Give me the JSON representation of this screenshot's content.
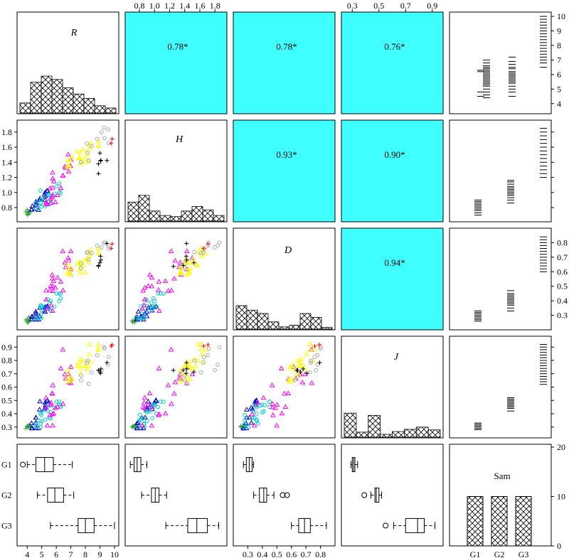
{
  "chart_data": {
    "type": "scatter-matrix",
    "variables": [
      "R",
      "H",
      "D",
      "J"
    ],
    "factor": {
      "name": "Sam",
      "levels": [
        "G1",
        "G2",
        "G3"
      ],
      "counts": [
        10,
        10,
        10
      ],
      "ylim": [
        0,
        20
      ],
      "yticks": [
        "0",
        "10",
        "20"
      ]
    },
    "colors": {
      "panel_fill": "#40ffff",
      "hist_fill": "#ffffff",
      "series": [
        "#2ca02c",
        "#0000cc",
        "#00cccc",
        "#ff00ff",
        "#ffff00",
        "#aaaaaa",
        "#000000",
        "#ff0000"
      ]
    },
    "correlations": [
      {
        "row": "R",
        "col": "H",
        "label": "0.78*"
      },
      {
        "row": "R",
        "col": "D",
        "label": "0.78*"
      },
      {
        "row": "R",
        "col": "J",
        "label": "0.76*"
      },
      {
        "row": "H",
        "col": "D",
        "label": "0.93*"
      },
      {
        "row": "H",
        "col": "J",
        "label": "0.90*"
      },
      {
        "row": "D",
        "col": "J",
        "label": "0.94*"
      }
    ],
    "axes": {
      "R": {
        "ylim": [
          3.5,
          10
        ],
        "ticks": [
          4,
          5,
          6,
          7,
          8,
          9,
          10
        ],
        "tick_labels": [
          "4",
          "5",
          "6",
          "7",
          "8",
          "9",
          "10"
        ]
      },
      "H": {
        "ylim": [
          0.65,
          1.92
        ],
        "ticks": [
          0.8,
          1.0,
          1.2,
          1.4,
          1.6,
          1.8
        ],
        "tick_labels": [
          "0.8",
          "1.0",
          "1.2",
          "1.4",
          "1.6",
          "1.8"
        ]
      },
      "D": {
        "ylim": [
          0.22,
          0.88
        ],
        "ticks": [
          0.3,
          0.4,
          0.5,
          0.6,
          0.7,
          0.8
        ],
        "tick_labels": [
          "0.3",
          "0.4",
          "0.5",
          "0.6",
          "0.7",
          "0.8"
        ]
      },
      "J": {
        "ylim": [
          0.24,
          0.96
        ],
        "ticks": [
          0.3,
          0.4,
          0.5,
          0.6,
          0.7,
          0.8,
          0.9
        ],
        "tick_labels": [
          "0.3",
          "0.4",
          "0.5",
          "0.6",
          "0.7",
          "0.8",
          "0.9"
        ]
      },
      "J_top": {
        "ticks": [
          0.3,
          0.5,
          0.7,
          0.9
        ],
        "tick_labels": [
          "0.3",
          "0.5",
          "0.7",
          "0.9"
        ]
      }
    },
    "histograms": {
      "R": [
        0.18,
        0.55,
        0.66,
        0.6,
        0.45,
        0.34,
        0.26,
        0.13,
        0.09
      ],
      "H": [
        0.34,
        0.46,
        0.18,
        0.1,
        0.08,
        0.18,
        0.26,
        0.2,
        0.1
      ],
      "D": [
        0.42,
        0.34,
        0.28,
        0.13,
        0.04,
        0.07,
        0.28,
        0.21,
        0.03
      ],
      "J": [
        0.43,
        0.09,
        0.39,
        0.05,
        0.1,
        0.14,
        0.18,
        0.13
      ]
    },
    "boxplots": {
      "R": [
        {
          "level": "G1",
          "min": 4.0,
          "q1": 4.6,
          "median": 5.2,
          "q3": 5.8,
          "max": 7.1,
          "outliers": [
            3.7
          ]
        },
        {
          "level": "G2",
          "min": 4.7,
          "q1": 5.4,
          "median": 5.9,
          "q3": 6.5,
          "max": 7.2,
          "outliers": []
        },
        {
          "level": "G3",
          "min": 5.6,
          "q1": 7.5,
          "median": 8.0,
          "q3": 8.6,
          "max": 10.0,
          "outliers": []
        }
      ],
      "H": [
        {
          "level": "G1",
          "min": 0.68,
          "q1": 0.73,
          "median": 0.77,
          "q3": 0.82,
          "max": 0.9,
          "outliers": []
        },
        {
          "level": "G2",
          "min": 0.83,
          "q1": 0.96,
          "median": 1.01,
          "q3": 1.06,
          "max": 1.16,
          "outliers": []
        },
        {
          "level": "G3",
          "min": 1.15,
          "q1": 1.44,
          "median": 1.56,
          "q3": 1.7,
          "max": 1.85,
          "outliers": []
        }
      ],
      "D": [
        {
          "level": "G1",
          "min": 0.27,
          "q1": 0.29,
          "median": 0.31,
          "q3": 0.33,
          "max": 0.34,
          "outliers": []
        },
        {
          "level": "G2",
          "min": 0.34,
          "q1": 0.38,
          "median": 0.41,
          "q3": 0.43,
          "max": 0.48,
          "outliers": [
            0.54,
            0.57
          ]
        },
        {
          "level": "G3",
          "min": 0.6,
          "q1": 0.65,
          "median": 0.69,
          "q3": 0.73,
          "max": 0.84,
          "outliers": []
        }
      ],
      "J": [
        {
          "level": "G1",
          "min": 0.29,
          "q1": 0.3,
          "median": 0.31,
          "q3": 0.32,
          "max": 0.34,
          "outliers": []
        },
        {
          "level": "G2",
          "min": 0.44,
          "q1": 0.47,
          "median": 0.48,
          "q3": 0.5,
          "max": 0.52,
          "outliers": [
            0.39
          ]
        },
        {
          "level": "G3",
          "min": 0.61,
          "q1": 0.7,
          "median": 0.79,
          "q3": 0.84,
          "max": 0.92,
          "outliers": [
            0.55
          ]
        }
      ]
    },
    "rugs": {
      "R": {
        "G1": [
          4.5,
          4.8,
          6.2,
          6.3
        ],
        "G2": [
          4.4,
          4.6,
          4.8,
          5.0,
          5.2,
          5.3,
          5.4,
          5.5,
          5.6,
          5.7,
          5.8,
          5.9,
          6.0,
          6.1,
          6.2,
          6.3,
          6.4,
          6.5,
          6.6,
          6.8,
          7.0
        ],
        "G3": [
          4.5,
          4.8,
          5.0,
          5.2,
          5.4,
          5.5,
          5.6,
          5.7,
          5.8,
          5.9,
          6.0,
          6.1,
          6.2,
          6.4,
          6.5,
          6.7,
          6.9,
          7.2
        ],
        "G4": [
          6.5,
          6.8,
          7.0,
          7.2,
          7.4,
          7.6,
          7.8,
          8.0,
          8.2,
          8.4,
          8.6,
          8.8,
          9.0,
          9.2,
          9.4,
          9.6,
          9.8,
          10.0
        ]
      },
      "H": {
        "G1": [
          0.7,
          0.73,
          0.76,
          0.78,
          0.8,
          0.82,
          0.84,
          0.86,
          0.88,
          0.9
        ],
        "G2": [
          0.86,
          0.9,
          0.93,
          0.96,
          0.98,
          1.0,
          1.02,
          1.04,
          1.06,
          1.08,
          1.11,
          1.14,
          1.16
        ],
        "G3": [
          1.2,
          1.25,
          1.3,
          1.35,
          1.4,
          1.45,
          1.5,
          1.55,
          1.6,
          1.65,
          1.7,
          1.75,
          1.8,
          1.85
        ]
      },
      "D": {
        "G1": [
          0.26,
          0.27,
          0.28,
          0.29,
          0.3,
          0.31,
          0.32,
          0.33
        ],
        "G2": [
          0.33,
          0.35,
          0.37,
          0.38,
          0.39,
          0.4,
          0.41,
          0.42,
          0.43,
          0.44,
          0.45,
          0.47
        ],
        "G3": [
          0.6,
          0.62,
          0.64,
          0.66,
          0.68,
          0.7,
          0.72,
          0.74,
          0.76,
          0.78,
          0.8,
          0.82,
          0.84
        ]
      },
      "J": {
        "G1": [
          0.28,
          0.29,
          0.3,
          0.31,
          0.32,
          0.33
        ],
        "G2": [
          0.42,
          0.44,
          0.45,
          0.46,
          0.47,
          0.48,
          0.49,
          0.5,
          0.51,
          0.52
        ],
        "G3": [
          0.62,
          0.64,
          0.66,
          0.68,
          0.7,
          0.72,
          0.74,
          0.76,
          0.78,
          0.8,
          0.82,
          0.84,
          0.86,
          0.88,
          0.9,
          0.92
        ]
      }
    }
  }
}
